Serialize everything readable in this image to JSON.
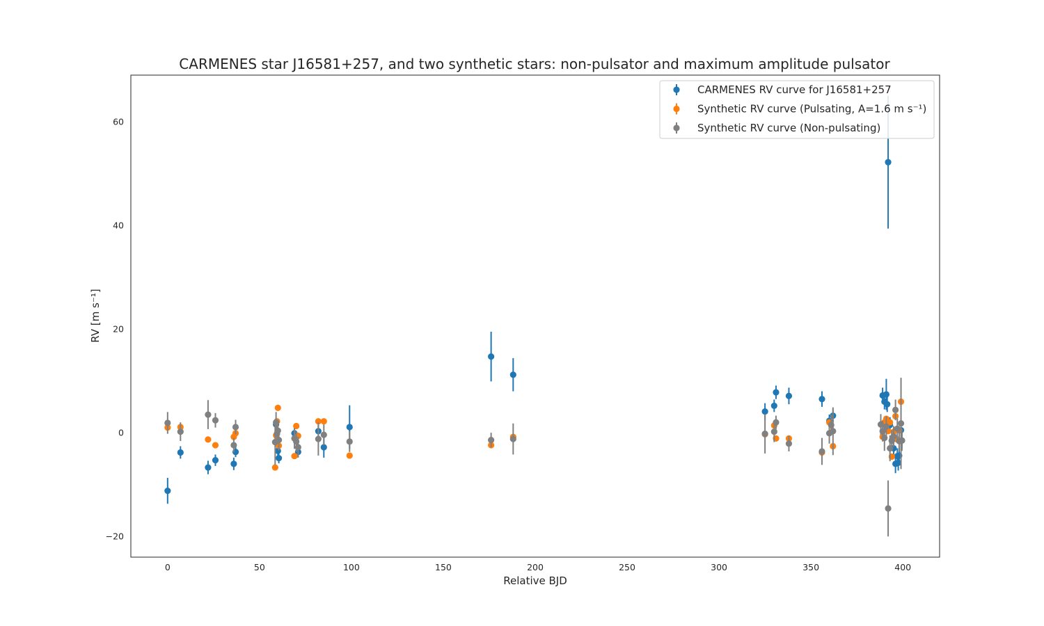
{
  "chart_data": {
    "type": "scatter",
    "title": "CARMENES star J16581+257, and two synthetic stars: non-pulsator and maximum amplitude pulsator",
    "xlabel": "Relative BJD",
    "ylabel": "RV [m s⁻¹]",
    "xlim": [
      -20,
      420
    ],
    "ylim": [
      -24,
      69
    ],
    "xticks": [
      0,
      50,
      100,
      150,
      200,
      250,
      300,
      350,
      400
    ],
    "yticks": [
      -20,
      0,
      20,
      40,
      60
    ],
    "grid": false,
    "legend_position": "top-right",
    "series": [
      {
        "name": "CARMENES RV curve for J16581+257",
        "color": "#1f77b4",
        "points": [
          {
            "x": 0,
            "y": -11.2,
            "err": 2.5
          },
          {
            "x": 7,
            "y": -3.8,
            "err": 1.2
          },
          {
            "x": 22,
            "y": -6.7,
            "err": 1.3
          },
          {
            "x": 26,
            "y": -5.3,
            "err": 1.1
          },
          {
            "x": 36,
            "y": -6.0,
            "err": 1.2
          },
          {
            "x": 37,
            "y": -3.7,
            "err": 1.0
          },
          {
            "x": 59,
            "y": 1.6,
            "err": 1.0
          },
          {
            "x": 59.5,
            "y": -2.0,
            "err": 1.0
          },
          {
            "x": 60,
            "y": -3.5,
            "err": 1.0
          },
          {
            "x": 60.5,
            "y": -4.9,
            "err": 1.0
          },
          {
            "x": 69,
            "y": -0.1,
            "err": 1.0
          },
          {
            "x": 71,
            "y": -3.7,
            "err": 1.0
          },
          {
            "x": 82,
            "y": 0.3,
            "err": 1.2
          },
          {
            "x": 85,
            "y": -2.8,
            "err": 2.0
          },
          {
            "x": 99,
            "y": 1.1,
            "err": 4.2
          },
          {
            "x": 176,
            "y": 14.7,
            "err": 4.8
          },
          {
            "x": 188,
            "y": 11.2,
            "err": 3.2
          },
          {
            "x": 325,
            "y": 4.1,
            "err": 1.6
          },
          {
            "x": 330,
            "y": 5.2,
            "err": 1.2
          },
          {
            "x": 331,
            "y": 7.8,
            "err": 1.3
          },
          {
            "x": 338,
            "y": 7.1,
            "err": 1.6
          },
          {
            "x": 356,
            "y": 6.5,
            "err": 1.5
          },
          {
            "x": 360,
            "y": 2.3,
            "err": 1.2
          },
          {
            "x": 362,
            "y": 3.3,
            "err": 1.2
          },
          {
            "x": 389,
            "y": 7.2,
            "err": 1.5
          },
          {
            "x": 390,
            "y": 6.0,
            "err": 1.5
          },
          {
            "x": 391,
            "y": 7.4,
            "err": 3.0
          },
          {
            "x": 391.5,
            "y": 5.5,
            "err": 1.5
          },
          {
            "x": 392,
            "y": 52.2,
            "err": 12.8
          },
          {
            "x": 393,
            "y": 1.5,
            "err": 1.5
          },
          {
            "x": 394,
            "y": -1.5,
            "err": 1.5
          },
          {
            "x": 395,
            "y": -3.0,
            "err": 1.5
          },
          {
            "x": 396,
            "y": -6.0,
            "err": 1.8
          },
          {
            "x": 397,
            "y": -4.5,
            "err": 1.5
          },
          {
            "x": 397.5,
            "y": -5.8,
            "err": 1.5
          },
          {
            "x": 398,
            "y": -4.4,
            "err": 1.5
          },
          {
            "x": 399,
            "y": 0.5,
            "err": 1.5
          },
          {
            "x": 399.5,
            "y": -1.5,
            "err": 1.5
          }
        ]
      },
      {
        "name": "Synthetic RV curve (Pulsating, A=1.6 m s⁻¹)",
        "color": "#ff7f0e",
        "points": [
          {
            "x": 0,
            "y": 1.0,
            "err": 0.5
          },
          {
            "x": 7,
            "y": 1.1,
            "err": 0.5
          },
          {
            "x": 22,
            "y": -1.3,
            "err": 0.5
          },
          {
            "x": 26,
            "y": -2.4,
            "err": 0.5
          },
          {
            "x": 36,
            "y": -0.8,
            "err": 0.5
          },
          {
            "x": 37,
            "y": -0.1,
            "err": 0.5
          },
          {
            "x": 58.5,
            "y": -6.7,
            "err": 0.5
          },
          {
            "x": 59,
            "y": -0.5,
            "err": 0.5
          },
          {
            "x": 59.5,
            "y": 2.2,
            "err": 0.5
          },
          {
            "x": 60,
            "y": 4.8,
            "err": 0.5
          },
          {
            "x": 60.5,
            "y": -2.5,
            "err": 0.5
          },
          {
            "x": 69,
            "y": -4.5,
            "err": 0.5
          },
          {
            "x": 70,
            "y": 1.3,
            "err": 0.5
          },
          {
            "x": 71,
            "y": -0.6,
            "err": 0.5
          },
          {
            "x": 82,
            "y": 2.2,
            "err": 0.5
          },
          {
            "x": 85,
            "y": 2.2,
            "err": 0.5
          },
          {
            "x": 99,
            "y": -4.4,
            "err": 0.5
          },
          {
            "x": 176,
            "y": -2.4,
            "err": 0.5
          },
          {
            "x": 188,
            "y": -0.8,
            "err": 0.5
          },
          {
            "x": 325,
            "y": -0.3,
            "err": 0.5
          },
          {
            "x": 330,
            "y": 1.4,
            "err": 0.5
          },
          {
            "x": 331,
            "y": -1.1,
            "err": 0.5
          },
          {
            "x": 338,
            "y": -1.1,
            "err": 0.5
          },
          {
            "x": 356,
            "y": -3.8,
            "err": 0.5
          },
          {
            "x": 360,
            "y": 2.0,
            "err": 0.5
          },
          {
            "x": 362,
            "y": -2.6,
            "err": 0.5
          },
          {
            "x": 389,
            "y": -0.8,
            "err": 0.5
          },
          {
            "x": 390,
            "y": 2.0,
            "err": 0.5
          },
          {
            "x": 391,
            "y": 2.7,
            "err": 0.5
          },
          {
            "x": 392,
            "y": 0.3,
            "err": 0.5
          },
          {
            "x": 393,
            "y": 2.0,
            "err": 0.5
          },
          {
            "x": 394,
            "y": -4.6,
            "err": 0.5
          },
          {
            "x": 395,
            "y": 0.2,
            "err": 0.5
          },
          {
            "x": 396,
            "y": 3.2,
            "err": 0.5
          },
          {
            "x": 397,
            "y": -1.3,
            "err": 0.5
          },
          {
            "x": 398,
            "y": 0.5,
            "err": 0.5
          },
          {
            "x": 399,
            "y": 6.0,
            "err": 0.5
          }
        ]
      },
      {
        "name": "Synthetic RV curve (Non-pulsating)",
        "color": "#808080",
        "points": [
          {
            "x": 0,
            "y": 1.9,
            "err": 2.1
          },
          {
            "x": 7,
            "y": 0.2,
            "err": 1.8
          },
          {
            "x": 22,
            "y": 3.5,
            "err": 2.8
          },
          {
            "x": 26,
            "y": 2.4,
            "err": 1.4
          },
          {
            "x": 36,
            "y": -2.4,
            "err": 1.4
          },
          {
            "x": 37,
            "y": 1.1,
            "err": 1.4
          },
          {
            "x": 58.5,
            "y": -1.8,
            "err": 4.4
          },
          {
            "x": 59,
            "y": 2.0,
            "err": 2.0
          },
          {
            "x": 59.5,
            "y": -0.2,
            "err": 2.0
          },
          {
            "x": 60,
            "y": 0.4,
            "err": 2.0
          },
          {
            "x": 60.5,
            "y": -1.4,
            "err": 2.0
          },
          {
            "x": 69,
            "y": -1.1,
            "err": 2.0
          },
          {
            "x": 70,
            "y": -1.7,
            "err": 2.0
          },
          {
            "x": 71,
            "y": -2.8,
            "err": 2.0
          },
          {
            "x": 82,
            "y": -1.2,
            "err": 3.2
          },
          {
            "x": 85,
            "y": -0.4,
            "err": 2.0
          },
          {
            "x": 99,
            "y": -1.7,
            "err": 2.0
          },
          {
            "x": 176,
            "y": -1.4,
            "err": 1.4
          },
          {
            "x": 188,
            "y": -1.2,
            "err": 3.0
          },
          {
            "x": 325,
            "y": -0.2,
            "err": 3.8
          },
          {
            "x": 330,
            "y": 0.2,
            "err": 2.0
          },
          {
            "x": 331,
            "y": 2.0,
            "err": 1.3
          },
          {
            "x": 338,
            "y": -2.1,
            "err": 1.5
          },
          {
            "x": 356,
            "y": -3.6,
            "err": 2.6
          },
          {
            "x": 360,
            "y": -0.1,
            "err": 2.0
          },
          {
            "x": 361,
            "y": 1.5,
            "err": 2.0
          },
          {
            "x": 362,
            "y": 0.3,
            "err": 4.6
          },
          {
            "x": 388,
            "y": 1.6,
            "err": 2.0
          },
          {
            "x": 389,
            "y": 0.3,
            "err": 2.0
          },
          {
            "x": 390,
            "y": -1.0,
            "err": 2.5
          },
          {
            "x": 391,
            "y": 1.2,
            "err": 2.0
          },
          {
            "x": 392,
            "y": -14.6,
            "err": 5.4
          },
          {
            "x": 393,
            "y": -3.0,
            "err": 2.5
          },
          {
            "x": 394,
            "y": -1.5,
            "err": 2.0
          },
          {
            "x": 395,
            "y": -0.7,
            "err": 2.0
          },
          {
            "x": 396,
            "y": 4.4,
            "err": 2.0
          },
          {
            "x": 397,
            "y": 0.8,
            "err": 2.0
          },
          {
            "x": 398,
            "y": -1.6,
            "err": 2.0
          },
          {
            "x": 399,
            "y": 1.8,
            "err": 8.8
          },
          {
            "x": 399.5,
            "y": -1.5,
            "err": 2.0
          }
        ]
      }
    ]
  }
}
